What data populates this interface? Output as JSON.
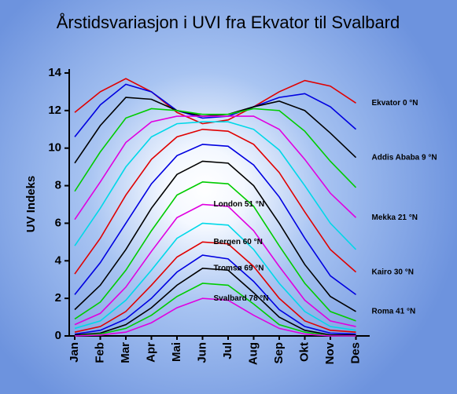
{
  "chart_data": {
    "type": "line",
    "title": "Årstidsvariasjon i UVI fra Ekvator til Svalbard",
    "y_label": "UV Indeks",
    "categories": [
      "Jan",
      "Feb",
      "Mar",
      "Apr",
      "Mai",
      "Jun",
      "Jul",
      "Aug",
      "Sep",
      "Okt",
      "Nov",
      "Des"
    ],
    "ylim": [
      0,
      14
    ],
    "yticks": [
      0,
      2,
      4,
      6,
      8,
      10,
      12,
      14
    ],
    "series": [
      {
        "name": "Ekvator 0 °N",
        "color": "#e00000",
        "values": [
          11.9,
          13.0,
          13.7,
          13.0,
          11.9,
          11.3,
          11.5,
          12.2,
          13.0,
          13.6,
          13.3,
          12.4
        ]
      },
      {
        "color": "#0000e0",
        "values": [
          10.6,
          12.3,
          13.4,
          13.0,
          12.0,
          11.6,
          11.7,
          12.2,
          12.7,
          12.9,
          12.2,
          11.0
        ]
      },
      {
        "name": "Addis Ababa 9 °N",
        "color": "#000000",
        "values": [
          9.2,
          11.2,
          12.7,
          12.6,
          12.0,
          11.7,
          11.8,
          12.2,
          12.5,
          12.0,
          10.8,
          9.5
        ]
      },
      {
        "color": "#00cc00",
        "values": [
          7.7,
          9.8,
          11.6,
          12.1,
          12.0,
          11.8,
          11.8,
          12.1,
          12.0,
          10.9,
          9.3,
          7.9
        ]
      },
      {
        "name": "Mekka 21 °N",
        "color": "#e000e0",
        "values": [
          6.2,
          8.2,
          10.3,
          11.4,
          11.7,
          11.7,
          11.7,
          11.7,
          11.0,
          9.4,
          7.6,
          6.3
        ]
      },
      {
        "color": "#00d8e8",
        "values": [
          4.8,
          6.8,
          9.0,
          10.6,
          11.3,
          11.4,
          11.4,
          11.0,
          9.9,
          8.0,
          6.0,
          4.6
        ]
      },
      {
        "name": "Kairo 30 °N",
        "color": "#e00000",
        "values": [
          3.3,
          5.2,
          7.5,
          9.4,
          10.6,
          11.0,
          10.9,
          10.2,
          8.7,
          6.6,
          4.6,
          3.4
        ]
      },
      {
        "color": "#0000e0",
        "values": [
          2.2,
          3.9,
          6.0,
          8.1,
          9.6,
          10.2,
          10.1,
          9.1,
          7.4,
          5.2,
          3.2,
          2.2
        ]
      },
      {
        "name": "Roma 41 °N",
        "color": "#000000",
        "values": [
          1.4,
          2.7,
          4.6,
          6.8,
          8.6,
          9.3,
          9.2,
          8.0,
          6.0,
          3.8,
          2.1,
          1.3
        ]
      },
      {
        "color": "#00cc00",
        "values": [
          0.9,
          1.8,
          3.5,
          5.6,
          7.5,
          8.2,
          8.1,
          6.9,
          4.8,
          2.8,
          1.3,
          0.8
        ]
      },
      {
        "name": "London 51 °N",
        "color": "#e000e0",
        "values": [
          0.6,
          1.2,
          2.6,
          4.5,
          6.3,
          7.0,
          6.9,
          5.6,
          3.7,
          1.9,
          0.8,
          0.5
        ]
      },
      {
        "color": "#00d8e8",
        "values": [
          0.4,
          0.8,
          1.9,
          3.5,
          5.2,
          6.0,
          5.9,
          4.6,
          2.8,
          1.3,
          0.5,
          0.3
        ]
      },
      {
        "name": "Bergen 60 °N",
        "color": "#e00000",
        "values": [
          0.2,
          0.5,
          1.3,
          2.7,
          4.2,
          5.0,
          4.9,
          3.7,
          2.0,
          0.8,
          0.3,
          0.2
        ]
      },
      {
        "color": "#0000e0",
        "values": [
          0.1,
          0.3,
          0.9,
          2.0,
          3.4,
          4.3,
          4.1,
          2.9,
          1.4,
          0.5,
          0.15,
          0.1
        ]
      },
      {
        "name": "Tromsø 69 °N",
        "color": "#000000",
        "values": [
          0.05,
          0.15,
          0.6,
          1.5,
          2.7,
          3.6,
          3.5,
          2.3,
          1.0,
          0.3,
          0.05,
          0.05
        ]
      },
      {
        "color": "#00cc00",
        "values": [
          0,
          0.1,
          0.4,
          1.1,
          2.1,
          2.8,
          2.7,
          1.7,
          0.6,
          0.2,
          0,
          0
        ]
      },
      {
        "name": "Svalbard 78 °N",
        "color": "#e000e0",
        "values": [
          0,
          0.05,
          0.2,
          0.7,
          1.5,
          2.0,
          1.9,
          1.1,
          0.4,
          0.1,
          0,
          0
        ]
      }
    ]
  }
}
